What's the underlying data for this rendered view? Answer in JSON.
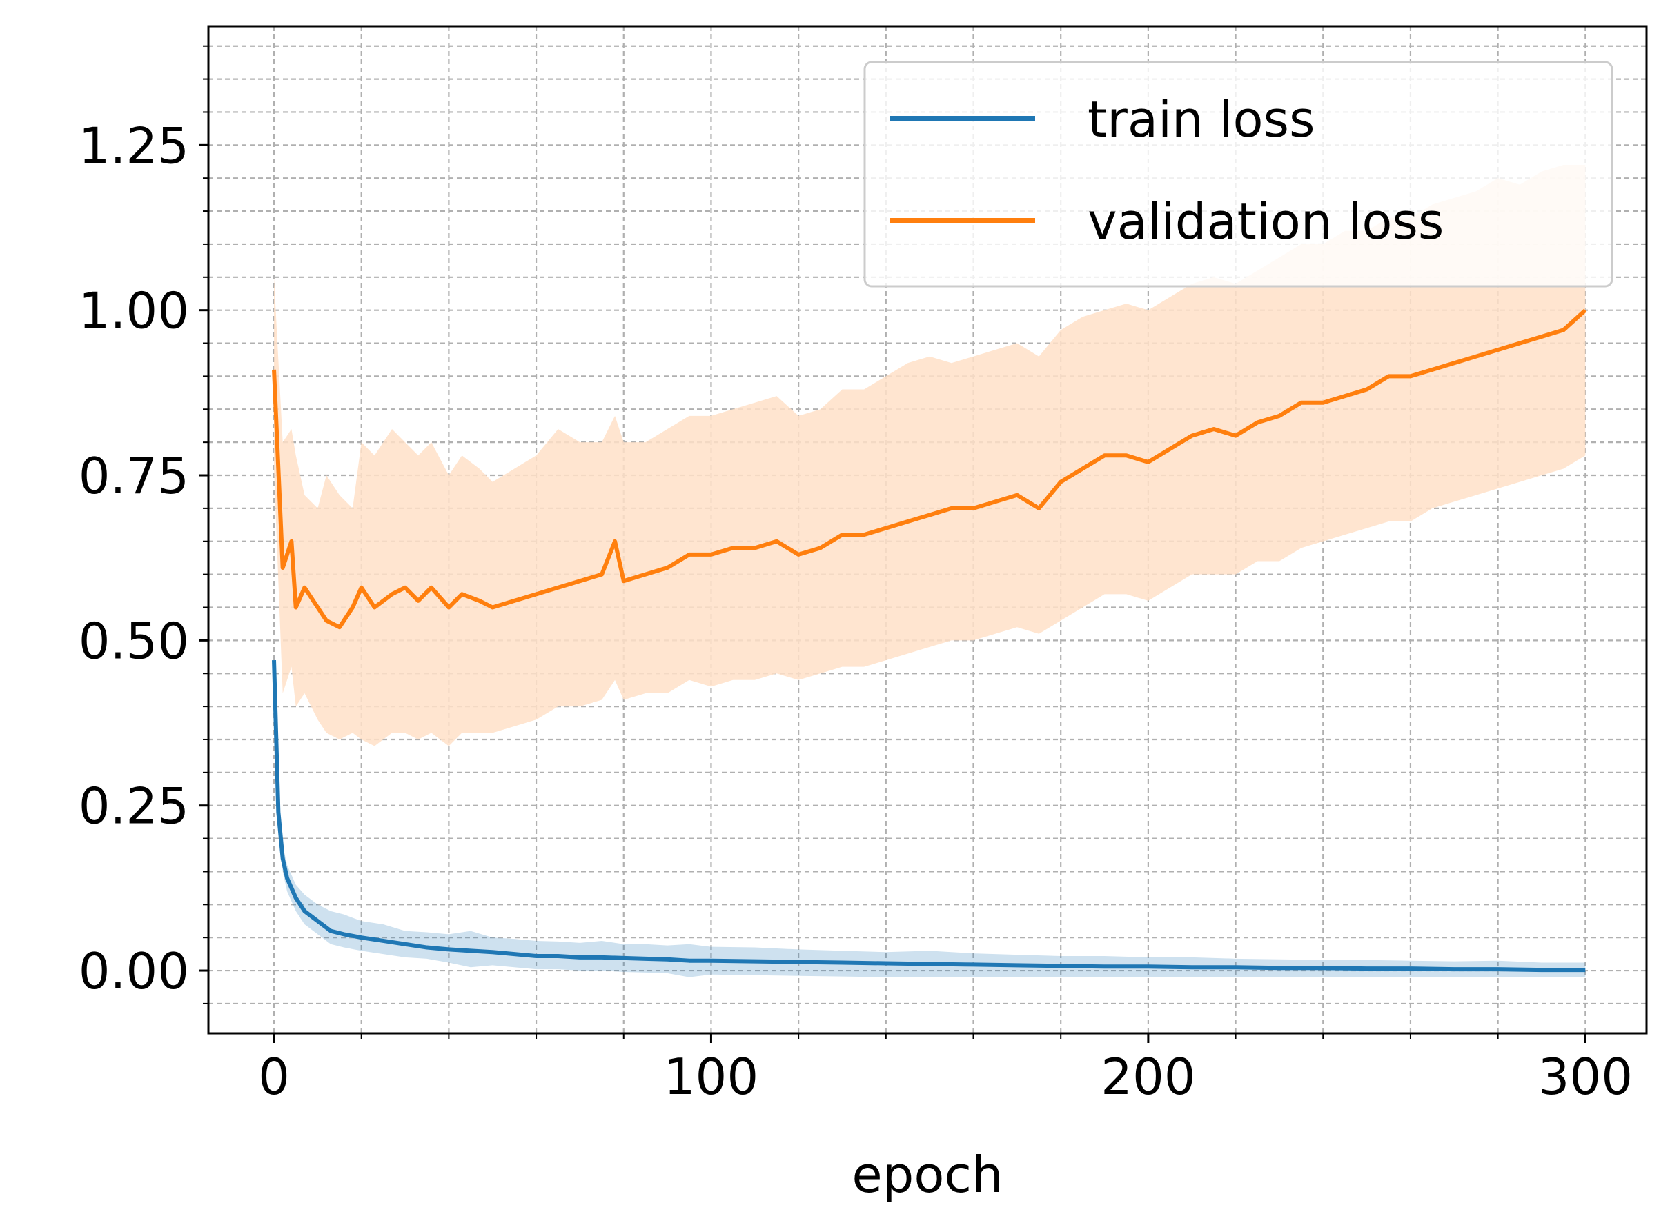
{
  "chart_data": {
    "type": "line",
    "title": "",
    "xlabel": "epoch",
    "ylabel": "",
    "xlim": [
      -15,
      314
    ],
    "ylim": [
      -0.095,
      1.43
    ],
    "xticks": [
      0,
      100,
      200,
      300
    ],
    "xtick_labels": [
      "0",
      "100",
      "200",
      "300"
    ],
    "yticks": [
      0.0,
      0.25,
      0.5,
      0.75,
      1.0,
      1.25
    ],
    "ytick_labels": [
      "0.00",
      "0.25",
      "0.50",
      "0.75",
      "1.00",
      "1.25"
    ],
    "minor_x_step": 20,
    "minor_y_step": 0.05,
    "grid": true,
    "grid_style": "dashed",
    "legend_location": "top-right",
    "series": [
      {
        "name": "train loss",
        "color": "#1f77b4",
        "band_color": "#1f77b4",
        "x": [
          0,
          1,
          2,
          3,
          5,
          7,
          10,
          13,
          16,
          20,
          25,
          30,
          35,
          40,
          45,
          50,
          55,
          60,
          65,
          70,
          75,
          80,
          85,
          90,
          95,
          100,
          110,
          120,
          130,
          140,
          150,
          160,
          170,
          180,
          190,
          200,
          210,
          220,
          230,
          240,
          250,
          260,
          270,
          280,
          290,
          300
        ],
        "mean": [
          0.47,
          0.24,
          0.17,
          0.14,
          0.11,
          0.09,
          0.075,
          0.06,
          0.055,
          0.05,
          0.045,
          0.04,
          0.035,
          0.032,
          0.03,
          0.028,
          0.025,
          0.022,
          0.022,
          0.02,
          0.02,
          0.019,
          0.018,
          0.017,
          0.015,
          0.015,
          0.014,
          0.013,
          0.012,
          0.011,
          0.01,
          0.009,
          0.008,
          0.007,
          0.006,
          0.006,
          0.005,
          0.005,
          0.004,
          0.004,
          0.003,
          0.003,
          0.002,
          0.002,
          0.001,
          0.001
        ],
        "upper": [
          0.48,
          0.26,
          0.19,
          0.16,
          0.13,
          0.115,
          0.1,
          0.09,
          0.085,
          0.075,
          0.07,
          0.06,
          0.058,
          0.055,
          0.06,
          0.05,
          0.048,
          0.045,
          0.044,
          0.042,
          0.045,
          0.04,
          0.04,
          0.038,
          0.04,
          0.036,
          0.035,
          0.032,
          0.03,
          0.028,
          0.03,
          0.026,
          0.024,
          0.022,
          0.022,
          0.02,
          0.02,
          0.018,
          0.017,
          0.016,
          0.016,
          0.015,
          0.014,
          0.015,
          0.012,
          0.012
        ],
        "lower": [
          0.46,
          0.22,
          0.15,
          0.12,
          0.09,
          0.07,
          0.055,
          0.04,
          0.035,
          0.03,
          0.025,
          0.02,
          0.018,
          0.012,
          0.005,
          0.008,
          0.005,
          0.002,
          0.002,
          0.0,
          0.0,
          -0.002,
          -0.003,
          -0.004,
          -0.01,
          -0.006,
          -0.007,
          -0.008,
          -0.009,
          -0.01,
          -0.01,
          -0.01,
          -0.01,
          -0.01,
          -0.01,
          -0.01,
          -0.01,
          -0.01,
          -0.01,
          -0.01,
          -0.01,
          -0.01,
          -0.01,
          -0.01,
          -0.01,
          -0.01
        ]
      },
      {
        "name": "validation loss",
        "color": "#ff7f0e",
        "band_color": "#ffe1c8",
        "x": [
          0,
          2,
          4,
          5,
          7,
          10,
          12,
          15,
          18,
          20,
          23,
          27,
          30,
          33,
          36,
          40,
          43,
          47,
          50,
          55,
          60,
          65,
          70,
          75,
          78,
          80,
          85,
          90,
          95,
          100,
          105,
          110,
          115,
          120,
          125,
          130,
          135,
          140,
          145,
          150,
          155,
          160,
          165,
          170,
          175,
          180,
          185,
          190,
          195,
          200,
          205,
          210,
          215,
          220,
          225,
          230,
          235,
          240,
          245,
          250,
          255,
          260,
          265,
          270,
          275,
          280,
          285,
          290,
          295,
          300
        ],
        "mean": [
          0.91,
          0.61,
          0.65,
          0.55,
          0.58,
          0.55,
          0.53,
          0.52,
          0.55,
          0.58,
          0.55,
          0.57,
          0.58,
          0.56,
          0.58,
          0.55,
          0.57,
          0.56,
          0.55,
          0.56,
          0.57,
          0.58,
          0.59,
          0.6,
          0.65,
          0.59,
          0.6,
          0.61,
          0.63,
          0.63,
          0.64,
          0.64,
          0.65,
          0.63,
          0.64,
          0.66,
          0.66,
          0.67,
          0.68,
          0.69,
          0.7,
          0.7,
          0.71,
          0.72,
          0.7,
          0.74,
          0.76,
          0.78,
          0.78,
          0.77,
          0.79,
          0.81,
          0.82,
          0.81,
          0.83,
          0.84,
          0.86,
          0.86,
          0.87,
          0.88,
          0.9,
          0.9,
          0.91,
          0.92,
          0.93,
          0.94,
          0.95,
          0.96,
          0.97,
          1.0
        ],
        "upper": [
          1.05,
          0.8,
          0.82,
          0.78,
          0.72,
          0.7,
          0.75,
          0.72,
          0.7,
          0.8,
          0.78,
          0.82,
          0.8,
          0.78,
          0.8,
          0.75,
          0.78,
          0.76,
          0.74,
          0.76,
          0.78,
          0.82,
          0.8,
          0.8,
          0.84,
          0.8,
          0.8,
          0.82,
          0.84,
          0.84,
          0.85,
          0.86,
          0.87,
          0.84,
          0.85,
          0.88,
          0.88,
          0.9,
          0.92,
          0.93,
          0.92,
          0.93,
          0.94,
          0.95,
          0.93,
          0.97,
          0.99,
          1.0,
          1.01,
          1.0,
          1.02,
          1.04,
          1.05,
          1.04,
          1.06,
          1.08,
          1.1,
          1.1,
          1.12,
          1.12,
          1.14,
          1.14,
          1.16,
          1.17,
          1.18,
          1.2,
          1.19,
          1.21,
          1.22,
          1.22
        ],
        "lower": [
          0.76,
          0.42,
          0.46,
          0.4,
          0.42,
          0.38,
          0.36,
          0.35,
          0.36,
          0.35,
          0.34,
          0.36,
          0.36,
          0.35,
          0.36,
          0.34,
          0.36,
          0.36,
          0.36,
          0.37,
          0.38,
          0.4,
          0.4,
          0.41,
          0.44,
          0.41,
          0.42,
          0.42,
          0.44,
          0.43,
          0.44,
          0.44,
          0.45,
          0.44,
          0.45,
          0.46,
          0.46,
          0.47,
          0.48,
          0.49,
          0.5,
          0.5,
          0.51,
          0.52,
          0.51,
          0.53,
          0.55,
          0.57,
          0.57,
          0.56,
          0.58,
          0.6,
          0.6,
          0.6,
          0.62,
          0.62,
          0.64,
          0.65,
          0.66,
          0.67,
          0.68,
          0.68,
          0.7,
          0.71,
          0.72,
          0.73,
          0.74,
          0.75,
          0.76,
          0.78
        ]
      }
    ]
  }
}
